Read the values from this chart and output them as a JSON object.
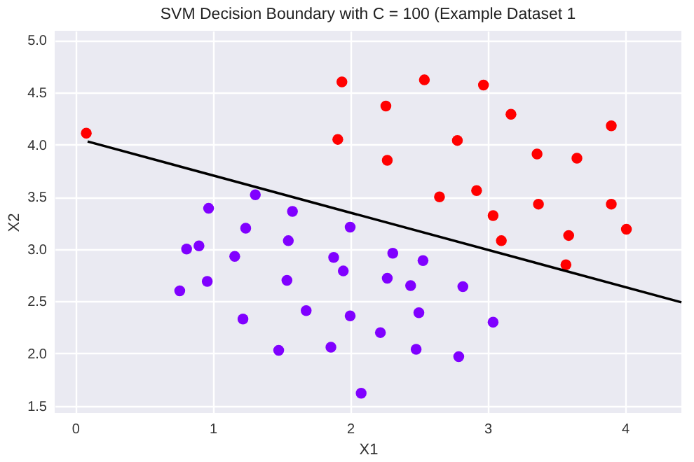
{
  "chart_data": {
    "type": "scatter",
    "title": "SVM Decision Boundary with C = 100 (Example Dataset 1",
    "xlabel": "X1",
    "ylabel": "X2",
    "xlim": [
      -0.15,
      4.41
    ],
    "ylim": [
      1.43,
      5.09
    ],
    "xticks": [
      0,
      1,
      2,
      3,
      4
    ],
    "yticks": [
      {
        "value": 1.5,
        "label": "1.5"
      },
      {
        "value": 2,
        "label": "2.0"
      },
      {
        "value": 2.5,
        "label": "2.5"
      },
      {
        "value": 3,
        "label": "3.0"
      },
      {
        "value": 3.5,
        "label": "3.5"
      },
      {
        "value": 4,
        "label": "4.0"
      },
      {
        "value": 4.5,
        "label": "4.5"
      },
      {
        "value": 5,
        "label": "5.0"
      }
    ],
    "grid": true,
    "marker": "circle",
    "series": [
      {
        "color": "#ff0000",
        "x": [
          0.08,
          1.94,
          2.54,
          2.97,
          1.91,
          2.26,
          3.17,
          2.78,
          3.36,
          3.9,
          2.27,
          3.65,
          2.65,
          2.92,
          3.37,
          3.9,
          3.04,
          3.59,
          3.1,
          4.01,
          3.57
        ],
        "values": [
          4.11,
          4.6,
          4.62,
          4.57,
          4.05,
          4.37,
          4.29,
          4.04,
          3.91,
          4.18,
          3.85,
          3.87,
          3.5,
          3.56,
          3.43,
          3.43,
          3.32,
          3.13,
          3.08,
          3.19,
          2.85
        ]
      },
      {
        "color": "#8000ff",
        "x": [
          0.97,
          1.31,
          1.58,
          1.24,
          1.55,
          2.0,
          0.81,
          0.9,
          1.16,
          0.96,
          0.76,
          1.22,
          1.48,
          1.68,
          1.54,
          1.88,
          1.95,
          1.86,
          2.0,
          2.08,
          2.31,
          2.53,
          2.27,
          2.44,
          2.82,
          2.5,
          3.04,
          2.22,
          2.48,
          2.79
        ],
        "values": [
          3.39,
          3.52,
          3.36,
          3.2,
          3.08,
          3.21,
          3.0,
          3.03,
          2.93,
          2.69,
          2.6,
          2.33,
          2.03,
          2.41,
          2.7,
          2.92,
          2.79,
          2.06,
          2.36,
          1.62,
          2.96,
          2.89,
          2.72,
          2.65,
          2.64,
          2.39,
          2.3,
          2.2,
          2.04,
          1.97
        ]
      },
      {
        "type": "line",
        "color": "#000000",
        "line_style": "solid",
        "marker": "none",
        "x": [
          0.09,
          4.41
        ],
        "values": [
          4.03,
          2.49
        ]
      }
    ]
  }
}
